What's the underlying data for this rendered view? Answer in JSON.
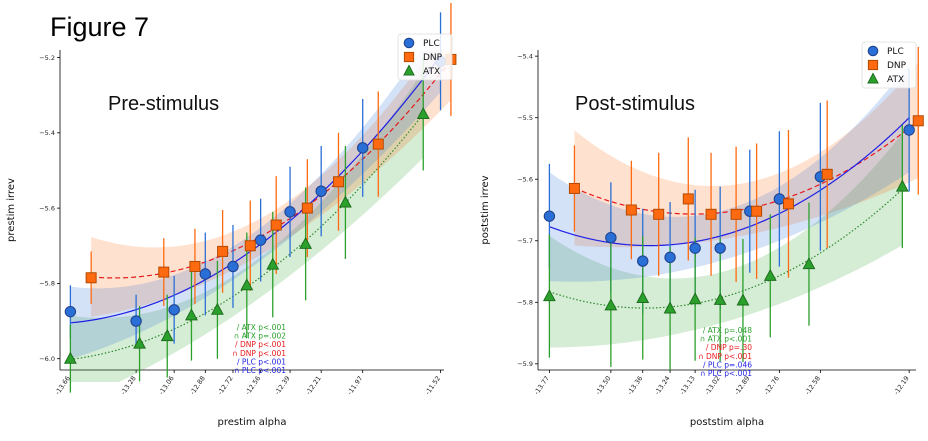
{
  "figure_title": "Figure 7",
  "colors": {
    "PLC": "#2a6fd6",
    "DNP": "#ff6a10",
    "ATX": "#2ca02c",
    "PLC_fit": "#1f1fe6",
    "DNP_fit": "#e8191c",
    "ATX_fit": "#2e8b2e"
  },
  "chart_data": [
    {
      "type": "scatter",
      "title": "Pre-stimulus",
      "xlabel": "prestim alpha",
      "ylabel": "prestim irrev",
      "xlim": [
        -13.72,
        -11.5
      ],
      "ylim": [
        -6.03,
        -5.18
      ],
      "xticks": [
        -13.66,
        -13.28,
        -13.06,
        -12.88,
        -12.72,
        -12.56,
        -12.39,
        -12.21,
        -11.97,
        -11.52
      ],
      "yticks": [
        -6.0,
        -5.8,
        -5.6,
        -5.4,
        -5.2
      ],
      "xtick_labels": [
        "-13.66",
        "-13.28",
        "-13.06",
        "-12.88",
        "-12.72",
        "-12.56",
        "-12.39",
        "-12.21",
        "-11.97",
        "-11.52"
      ],
      "ytick_labels": [
        "−6.0",
        "−5.8",
        "−5.6",
        "−5.4",
        "−5.2"
      ],
      "legend": {
        "position": "top-right",
        "entries": [
          "PLC",
          "DNP",
          "ATX"
        ]
      },
      "annotations": [
        {
          "text": "/ ATX p<.001",
          "color": "ATX"
        },
        {
          "text": "∩ ATX p=.002",
          "color": "ATX"
        },
        {
          "text": "/ DNP p<.001",
          "color": "DNP_fit"
        },
        {
          "text": "∩ DNP p<.001",
          "color": "DNP_fit"
        },
        {
          "text": "/ PLC p<.001",
          "color": "PLC_fit"
        },
        {
          "text": "∩ PLC p<.001",
          "color": "PLC_fit"
        }
      ],
      "series": [
        {
          "name": "PLC",
          "marker": "circle",
          "x": [
            -13.66,
            -13.28,
            -13.06,
            -12.88,
            -12.72,
            -12.56,
            -12.39,
            -12.21,
            -11.97,
            -11.52
          ],
          "y": [
            -5.875,
            -5.9,
            -5.87,
            -5.775,
            -5.755,
            -5.685,
            -5.61,
            -5.555,
            -5.44,
            -5.21
          ],
          "err": [
            0.07,
            0.07,
            0.09,
            0.11,
            0.11,
            0.11,
            0.12,
            0.12,
            0.13,
            0.13
          ]
        },
        {
          "name": "DNP",
          "marker": "square",
          "x": [
            -13.54,
            -13.12,
            -12.94,
            -12.78,
            -12.62,
            -12.47,
            -12.29,
            -12.11,
            -11.88,
            -11.46
          ],
          "y": [
            -5.785,
            -5.77,
            -5.755,
            -5.715,
            -5.7,
            -5.645,
            -5.6,
            -5.53,
            -5.43,
            -5.205
          ],
          "err": [
            0.07,
            0.09,
            0.1,
            0.11,
            0.12,
            0.13,
            0.13,
            0.13,
            0.14,
            0.15
          ]
        },
        {
          "name": "ATX",
          "marker": "triangle",
          "x": [
            -13.66,
            -13.26,
            -13.1,
            -12.96,
            -12.81,
            -12.64,
            -12.49,
            -12.3,
            -12.07,
            -11.62
          ],
          "y": [
            -6.0,
            -5.96,
            -5.94,
            -5.885,
            -5.87,
            -5.805,
            -5.75,
            -5.695,
            -5.585,
            -5.35
          ],
          "err": [
            0.09,
            0.1,
            0.11,
            0.12,
            0.13,
            0.14,
            0.14,
            0.15,
            0.15,
            0.15
          ]
        }
      ]
    },
    {
      "type": "scatter",
      "title": "Post-stimulus",
      "xlabel": "poststim alpha",
      "ylabel": "poststim irrev",
      "xlim": [
        -13.82,
        -12.16
      ],
      "ylim": [
        -5.91,
        -5.39
      ],
      "xticks": [
        -13.77,
        -13.5,
        -13.36,
        -13.24,
        -13.13,
        -13.02,
        -12.89,
        -12.76,
        -12.58,
        -12.19
      ],
      "yticks": [
        -5.9,
        -5.8,
        -5.7,
        -5.6,
        -5.5,
        -5.4
      ],
      "xtick_labels": [
        "-13.77",
        "-13.50",
        "-13.36",
        "-13.24",
        "-13.13",
        "-13.02",
        "-12.89",
        "-12.76",
        "-12.58",
        "-12.19"
      ],
      "ytick_labels": [
        "−5.9",
        "−5.8",
        "−5.7",
        "−5.6",
        "−5.5",
        "−5.4"
      ],
      "legend": {
        "position": "top-right",
        "entries": [
          "PLC",
          "DNP",
          "ATX"
        ]
      },
      "annotations": [
        {
          "text": "/ ATX p=.048",
          "color": "ATX"
        },
        {
          "text": "∩ ATX p<.001",
          "color": "ATX"
        },
        {
          "text": "/ DNP p=.30",
          "color": "DNP_fit"
        },
        {
          "text": "∩ DNP p<.001",
          "color": "DNP_fit"
        },
        {
          "text": "/ PLC p=.046",
          "color": "PLC_fit"
        },
        {
          "text": "∩ PLC p<.001",
          "color": "PLC_fit"
        }
      ],
      "series": [
        {
          "name": "PLC",
          "marker": "circle",
          "x": [
            -13.77,
            -13.5,
            -13.36,
            -13.24,
            -13.13,
            -13.02,
            -12.89,
            -12.76,
            -12.58,
            -12.19
          ],
          "y": [
            -5.66,
            -5.695,
            -5.733,
            -5.727,
            -5.712,
            -5.712,
            -5.652,
            -5.632,
            -5.596,
            -5.52
          ],
          "err": [
            0.085,
            0.09,
            0.085,
            0.09,
            0.095,
            0.1,
            0.1,
            0.11,
            0.12,
            0.1
          ]
        },
        {
          "name": "DNP",
          "marker": "square",
          "x": [
            -13.66,
            -13.41,
            -13.29,
            -13.16,
            -13.06,
            -12.95,
            -12.86,
            -12.72,
            -12.55,
            -12.15
          ],
          "y": [
            -5.615,
            -5.65,
            -5.657,
            -5.632,
            -5.657,
            -5.657,
            -5.652,
            -5.64,
            -5.592,
            -5.505
          ],
          "err": [
            0.07,
            0.08,
            0.1,
            0.1,
            0.1,
            0.11,
            0.11,
            0.12,
            0.12,
            0.12
          ]
        },
        {
          "name": "ATX",
          "marker": "triangle",
          "x": [
            -13.77,
            -13.5,
            -13.36,
            -13.24,
            -13.13,
            -13.02,
            -12.92,
            -12.8,
            -12.63,
            -12.22
          ],
          "y": [
            -5.79,
            -5.805,
            -5.793,
            -5.81,
            -5.795,
            -5.796,
            -5.797,
            -5.757,
            -5.738,
            -5.612
          ],
          "err": [
            0.1,
            0.1,
            0.1,
            0.1,
            0.1,
            0.1,
            0.1,
            0.1,
            0.1,
            0.1
          ]
        }
      ]
    }
  ]
}
